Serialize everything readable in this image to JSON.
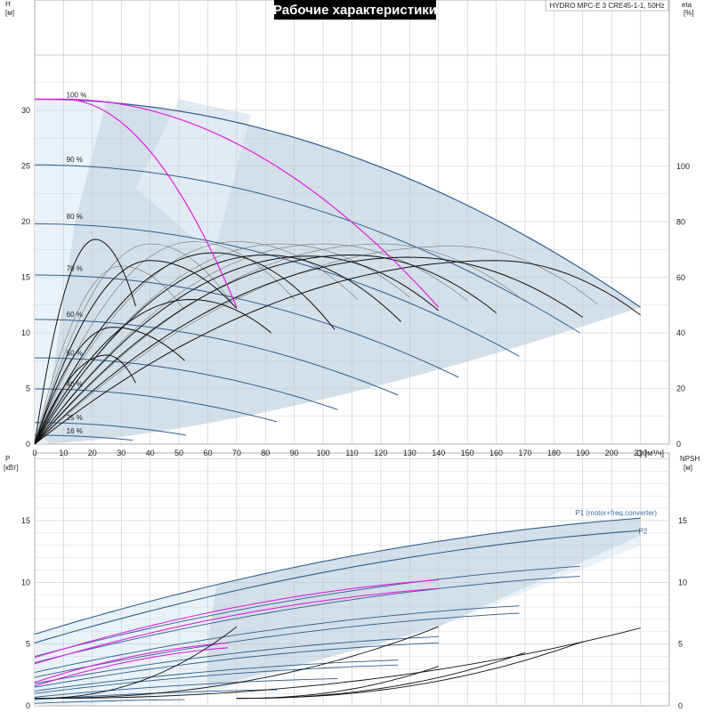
{
  "title": "Рабочие характеристики",
  "model": "HYDRO MPC-E 3 CRE45-1-1, 50Hz",
  "colors": {
    "area": "#d3dfe9",
    "area_light": "#eaf2f9",
    "blue": "#2f5f8f",
    "magenta": "#e020e0",
    "black": "#111111",
    "grid": "#c8c8c8",
    "title_bg": "#000000"
  },
  "chart_data": [
    {
      "type": "line",
      "name": "head",
      "xlabel": "Q [м³/ч]",
      "ylabel": "H [м]",
      "y2label": "eta [%]",
      "xlim": [
        0,
        220
      ],
      "ylim": [
        0,
        35
      ],
      "y2lim": [
        0,
        140
      ],
      "xticks": [
        0,
        10,
        20,
        30,
        40,
        50,
        60,
        70,
        80,
        90,
        100,
        110,
        120,
        130,
        140,
        150,
        160,
        170,
        180,
        190,
        200,
        210
      ],
      "yticks": [
        0,
        5,
        10,
        15,
        20,
        25,
        30
      ],
      "y2ticks": [
        0,
        20,
        40,
        60,
        80,
        100
      ],
      "speed_labels": [
        {
          "label": "100 %",
          "x": 11,
          "y": 31
        },
        {
          "label": "90 %",
          "x": 11,
          "y": 25.2
        },
        {
          "label": "80 %",
          "x": 11,
          "y": 20.1
        },
        {
          "label": "70 %",
          "x": 11,
          "y": 15.4
        },
        {
          "label": "60 %",
          "x": 11,
          "y": 11.3
        },
        {
          "label": "50 %",
          "x": 11,
          "y": 7.8
        },
        {
          "label": "40 %",
          "x": 11,
          "y": 5.0
        },
        {
          "label": "25 %",
          "x": 11,
          "y": 2.0
        },
        {
          "label": "16 %",
          "x": 11,
          "y": 0.8
        }
      ],
      "envelope": {
        "hmax": 31.0,
        "qmax": 210,
        "hend": 12.3
      },
      "blue_curves": [
        {
          "pct": 100,
          "H0": 31.0,
          "Qend": 210,
          "Hend": 12.3
        },
        {
          "pct": 90,
          "H0": 25.1,
          "Qend": 189,
          "Hend": 10.0
        },
        {
          "pct": 80,
          "H0": 19.8,
          "Qend": 168,
          "Hend": 7.9
        },
        {
          "pct": 70,
          "H0": 15.2,
          "Qend": 147,
          "Hend": 6.0
        },
        {
          "pct": 60,
          "H0": 11.2,
          "Qend": 126,
          "Hend": 4.4
        },
        {
          "pct": 50,
          "H0": 7.75,
          "Qend": 105,
          "Hend": 3.1
        },
        {
          "pct": 40,
          "H0": 4.96,
          "Qend": 84,
          "Hend": 2.0
        },
        {
          "pct": 25,
          "H0": 1.94,
          "Qend": 52.5,
          "Hend": 0.8
        },
        {
          "pct": 16,
          "H0": 0.8,
          "Qend": 34,
          "Hend": 0.35
        }
      ],
      "magenta_curves": [
        {
          "H0": 31.0,
          "Qpeak": 10,
          "Qend": 70,
          "Hend": 12.3
        },
        {
          "H0": 31.0,
          "Qpeak": 10,
          "Qend": 140,
          "Hend": 12.3
        }
      ],
      "black_curves": [
        {
          "pk_x": 21,
          "pk_y": 18.4,
          "end_x": 35,
          "end_y": 12.4
        },
        {
          "pk_x": 27,
          "pk_y": 10.5,
          "end_x": 52,
          "end_y": 7.5
        },
        {
          "pk_x": 25,
          "pk_y": 8.0,
          "end_x": 35,
          "end_y": 5.5
        },
        {
          "pk_x": 40,
          "pk_y": 16.5,
          "end_x": 70,
          "end_y": 12.2
        },
        {
          "pk_x": 54,
          "pk_y": 13.0,
          "end_x": 82,
          "end_y": 10.0
        },
        {
          "pk_x": 62,
          "pk_y": 17.2,
          "end_x": 104,
          "end_y": 10.3
        },
        {
          "pk_x": 80,
          "pk_y": 17.0,
          "end_x": 127,
          "end_y": 11.0
        },
        {
          "pk_x": 95,
          "pk_y": 16.9,
          "end_x": 140,
          "end_y": 12.0
        },
        {
          "pk_x": 110,
          "pk_y": 17.0,
          "end_x": 160,
          "end_y": 11.8
        },
        {
          "pk_x": 130,
          "pk_y": 16.8,
          "end_x": 190,
          "end_y": 11.4
        },
        {
          "pk_x": 160,
          "pk_y": 16.5,
          "end_x": 210,
          "end_y": 11.6
        }
      ],
      "grey_curves": [
        {
          "pk_x": 30,
          "pk_y": 16.0,
          "end_x": 52,
          "end_y": 12.0
        },
        {
          "pk_x": 40,
          "pk_y": 18.0,
          "end_x": 68,
          "end_y": 12.8
        },
        {
          "pk_x": 55,
          "pk_y": 18.2,
          "end_x": 90,
          "end_y": 13.0
        },
        {
          "pk_x": 70,
          "pk_y": 18.2,
          "end_x": 112,
          "end_y": 13.0
        },
        {
          "pk_x": 85,
          "pk_y": 18.0,
          "end_x": 130,
          "end_y": 13.2
        },
        {
          "pk_x": 100,
          "pk_y": 18.0,
          "end_x": 150,
          "end_y": 12.9
        },
        {
          "pk_x": 120,
          "pk_y": 18.0,
          "end_x": 170,
          "end_y": 12.8
        },
        {
          "pk_x": 145,
          "pk_y": 17.8,
          "end_x": 195,
          "end_y": 12.6
        }
      ]
    },
    {
      "type": "line",
      "name": "power",
      "xlabel": "",
      "ylabel": "P [кВт]",
      "y2label": "NPSH [м]",
      "xlim": [
        0,
        220
      ],
      "ylim": [
        0,
        18
      ],
      "y2lim": [
        0,
        18
      ],
      "yticks": [
        0,
        5,
        10,
        15
      ],
      "y2ticks": [
        0,
        5,
        10,
        15
      ],
      "series_labels": [
        {
          "name": "P1 (motor+freq.converter)",
          "x": 188,
          "y": 15.3
        },
        {
          "name": "P2",
          "x": 210,
          "y": 13.8
        }
      ],
      "blue_curves": [
        {
          "P0": 5.8,
          "Qend": 210,
          "Pend": 15.2
        },
        {
          "P0": 5.1,
          "Qend": 210,
          "Pend": 14.2
        },
        {
          "P0": 4.0,
          "Qend": 189,
          "Pend": 11.3
        },
        {
          "P0": 3.5,
          "Qend": 189,
          "Pend": 10.5
        },
        {
          "P0": 2.7,
          "Qend": 168,
          "Pend": 8.1
        },
        {
          "P0": 2.3,
          "Qend": 168,
          "Pend": 7.5
        },
        {
          "P0": 1.8,
          "Qend": 140,
          "Pend": 5.6
        },
        {
          "P0": 1.5,
          "Qend": 140,
          "Pend": 5.1
        },
        {
          "P0": 1.2,
          "Qend": 126,
          "Pend": 3.7
        },
        {
          "P0": 1.0,
          "Qend": 126,
          "Pend": 3.3
        },
        {
          "P0": 0.7,
          "Qend": 105,
          "Pend": 2.2
        },
        {
          "P0": 0.5,
          "Qend": 84,
          "Pend": 1.3
        },
        {
          "P0": 0.2,
          "Qend": 52,
          "Pend": 0.5
        }
      ],
      "magenta_curves": [
        {
          "P0": 3.9,
          "Qend": 140,
          "Pend": 10.2
        },
        {
          "P0": 3.4,
          "Qend": 140,
          "Pend": 9.5
        },
        {
          "P0": 1.9,
          "Qend": 67,
          "Pend": 5.1
        },
        {
          "P0": 1.6,
          "Qend": 67,
          "Pend": 4.7
        }
      ],
      "npsh_curves": [
        {
          "Qstart": 0,
          "Qend": 70,
          "Nend": 6.4
        },
        {
          "Qstart": 0,
          "Qend": 140,
          "Nend": 6.4
        },
        {
          "Qstart": 0,
          "Qend": 210,
          "Nend": 6.3
        },
        {
          "Qstart": 70,
          "Qend": 190,
          "Nend": 5.2
        },
        {
          "Qstart": 70,
          "Qend": 170,
          "Nend": 4.3
        },
        {
          "Qstart": 70,
          "Qend": 140,
          "Nend": 3.2
        }
      ]
    }
  ]
}
